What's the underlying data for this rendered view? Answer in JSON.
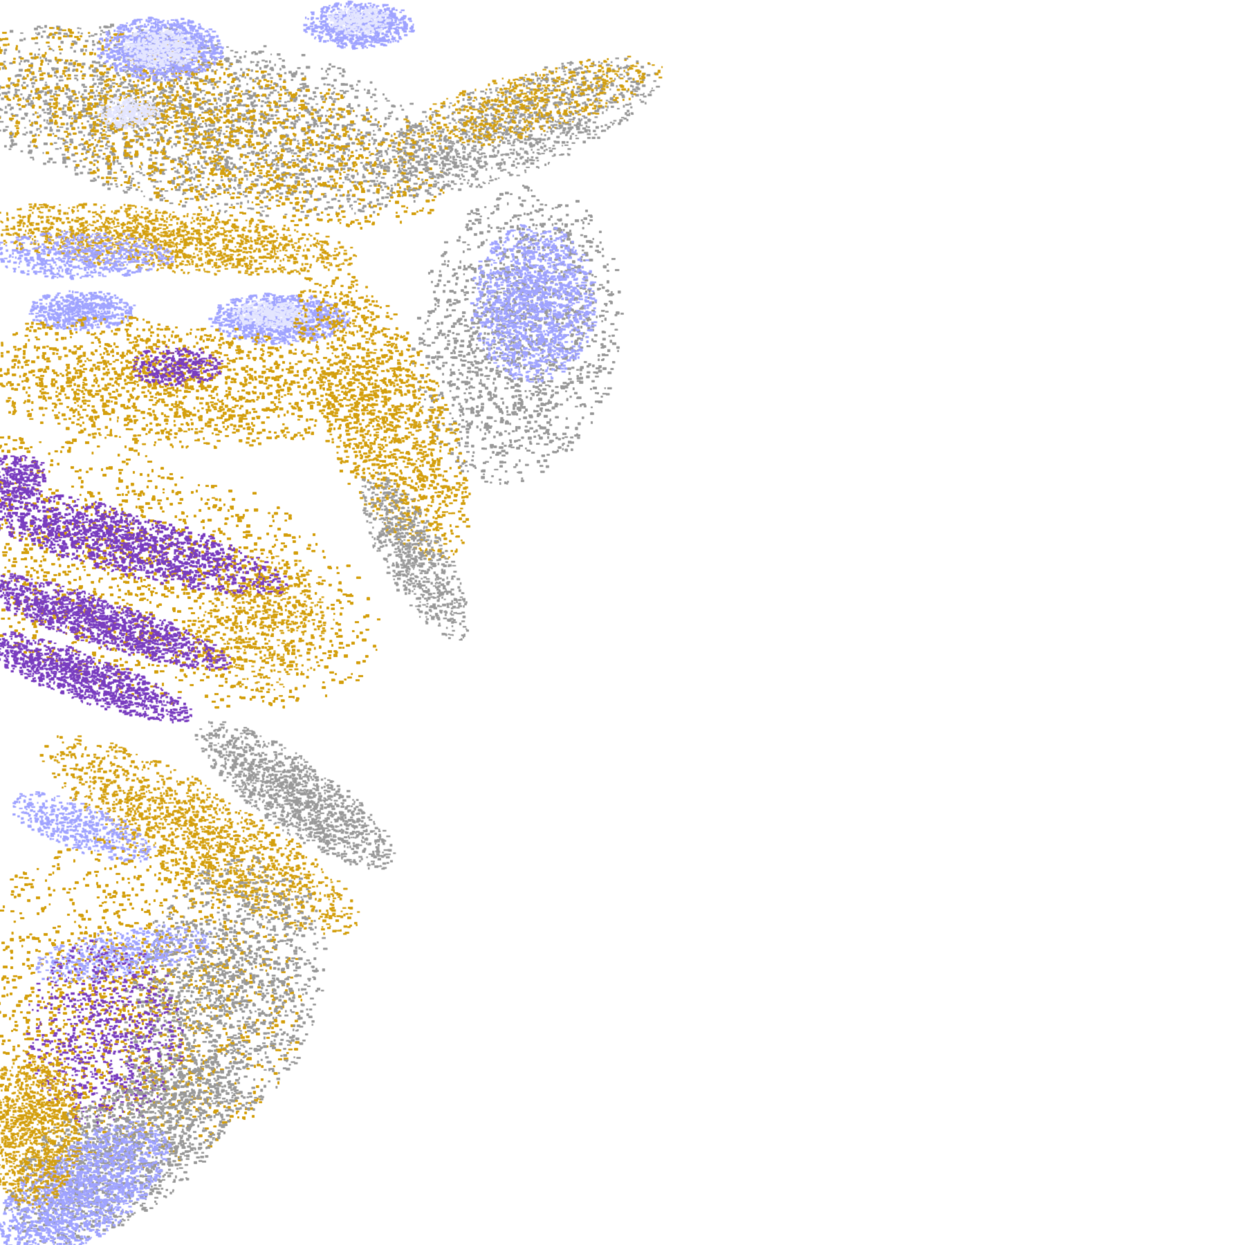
{
  "image": {
    "kind": "satellite cloud-type composite",
    "background": "#ffffff",
    "colors": {
      "gold": "#d4a010",
      "purple": "#7a3ec0",
      "gray": "#9a9a9a",
      "lavender": "#a0a4ff",
      "pale": "#e4e6ff"
    }
  }
}
